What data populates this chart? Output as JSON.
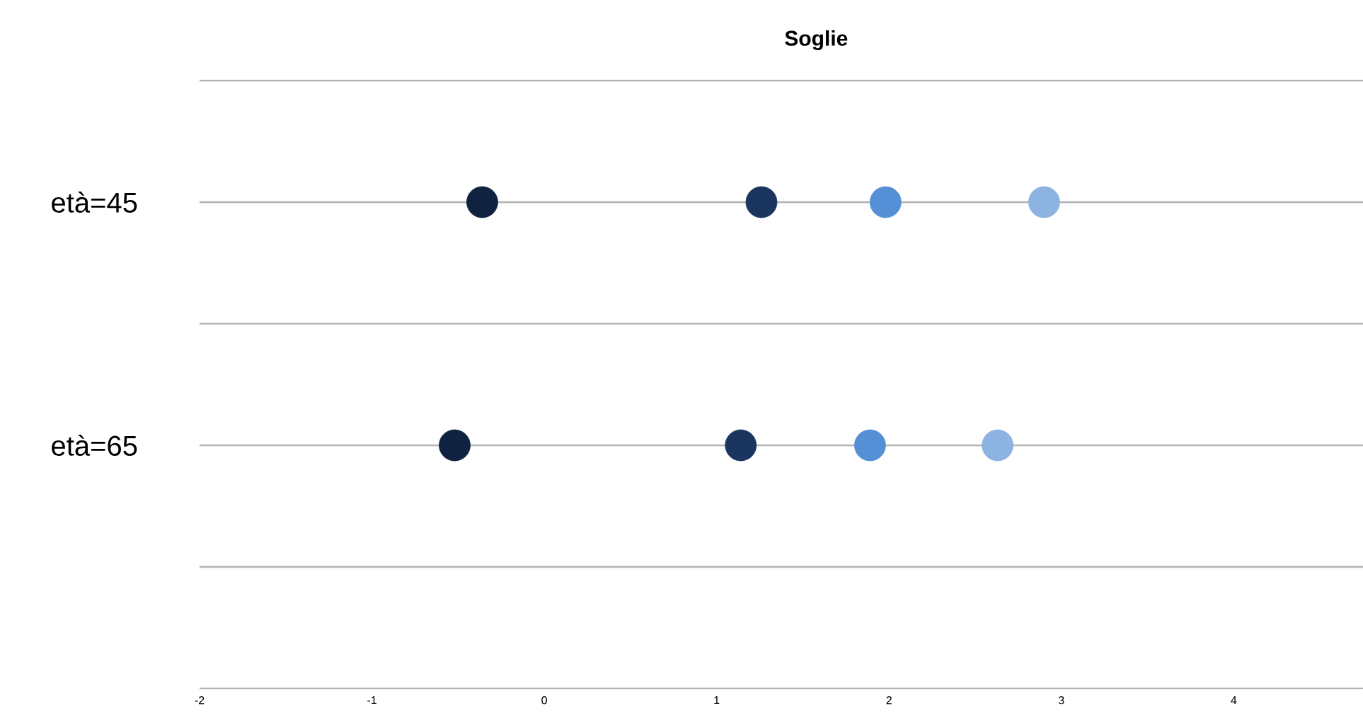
{
  "chart_data": {
    "type": "scatter",
    "title": "Soglie",
    "orientation": "horizontal",
    "categories": [
      "età=45",
      "età=65"
    ],
    "series": [
      {
        "color": "#0f2341",
        "values": [
          -0.36,
          -0.52
        ]
      },
      {
        "color": "#1a365f",
        "values": [
          1.26,
          1.14
        ]
      },
      {
        "color": "#5590d6",
        "values": [
          1.98,
          1.89
        ]
      },
      {
        "color": "#8db3e2",
        "values": [
          2.9,
          2.63
        ]
      }
    ],
    "marker": "circle",
    "grid": "y",
    "xlim": [
      -2,
      4.75
    ],
    "xticks": [
      -2,
      -1,
      0,
      1,
      2,
      3,
      4
    ]
  }
}
